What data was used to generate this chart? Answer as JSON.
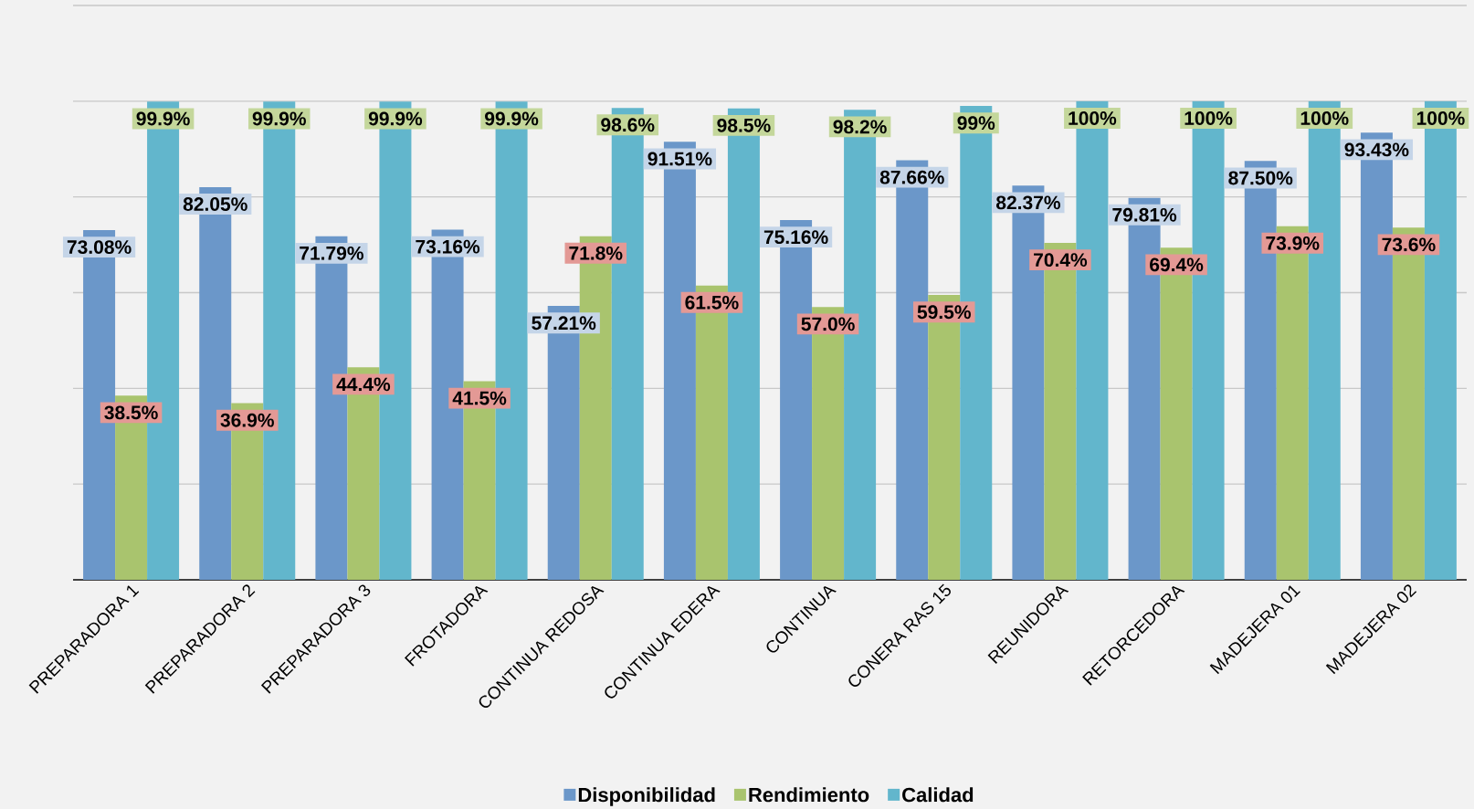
{
  "chart_data": {
    "type": "bar",
    "categories": [
      "PREPARADORA 1",
      "PREPARADORA 2",
      "PREPARADORA 3",
      "FROTADORA",
      "CONTINUA REDOSA",
      "CONTINUA EDERA",
      "CONTINUA",
      "CONERA RAS 15",
      "REUNIDORA",
      "RETORCEDORA",
      "MADEJERA 01",
      "MADEJERA 02"
    ],
    "series": [
      {
        "name": "Disponibilidad",
        "color": "#6b97c9",
        "values": [
          73.08,
          82.05,
          71.79,
          73.16,
          57.21,
          91.51,
          75.16,
          87.66,
          82.37,
          79.81,
          87.5,
          93.43
        ],
        "value_labels": [
          "73.08%",
          "82.05%",
          "71.79%",
          "73.16%",
          "57.21%",
          "91.51%",
          "75.16%",
          "87.66%",
          "82.37%",
          "79.81%",
          "87.50%",
          "93.43%"
        ]
      },
      {
        "name": "Rendimiento",
        "color": "#a9c46e",
        "values": [
          38.5,
          36.9,
          44.4,
          41.5,
          71.8,
          61.5,
          57.0,
          59.5,
          70.4,
          69.4,
          73.9,
          73.6
        ],
        "value_labels": [
          "38.5%",
          "36.9%",
          "44.4%",
          "41.5%",
          "71.8%",
          "61.5%",
          "57.0%",
          "59.5%",
          "70.4%",
          "69.4%",
          "73.9%",
          "73.6%"
        ]
      },
      {
        "name": "Calidad",
        "color": "#62b6cc",
        "values": [
          99.9,
          99.9,
          99.9,
          99.9,
          98.6,
          98.5,
          98.2,
          99,
          100,
          100,
          100,
          100
        ],
        "value_labels": [
          "99.9%",
          "99.9%",
          "99.9%",
          "99.9%",
          "98.6%",
          "98.5%",
          "98.2%",
          "99%",
          "100%",
          "100%",
          "100%",
          "100%"
        ]
      }
    ],
    "ylim": [
      0,
      120
    ],
    "yticks": [
      {
        "value": 0,
        "label": null
      },
      {
        "value": 20,
        "label": null
      },
      {
        "value": 40,
        "label": null
      },
      {
        "value": 60,
        "label": null
      },
      {
        "value": 80,
        "label": null
      },
      {
        "value": 100,
        "label": null
      },
      {
        "value": 120,
        "label": null
      }
    ],
    "tick_labels": "x",
    "grid": "y",
    "legend": "bottom"
  }
}
